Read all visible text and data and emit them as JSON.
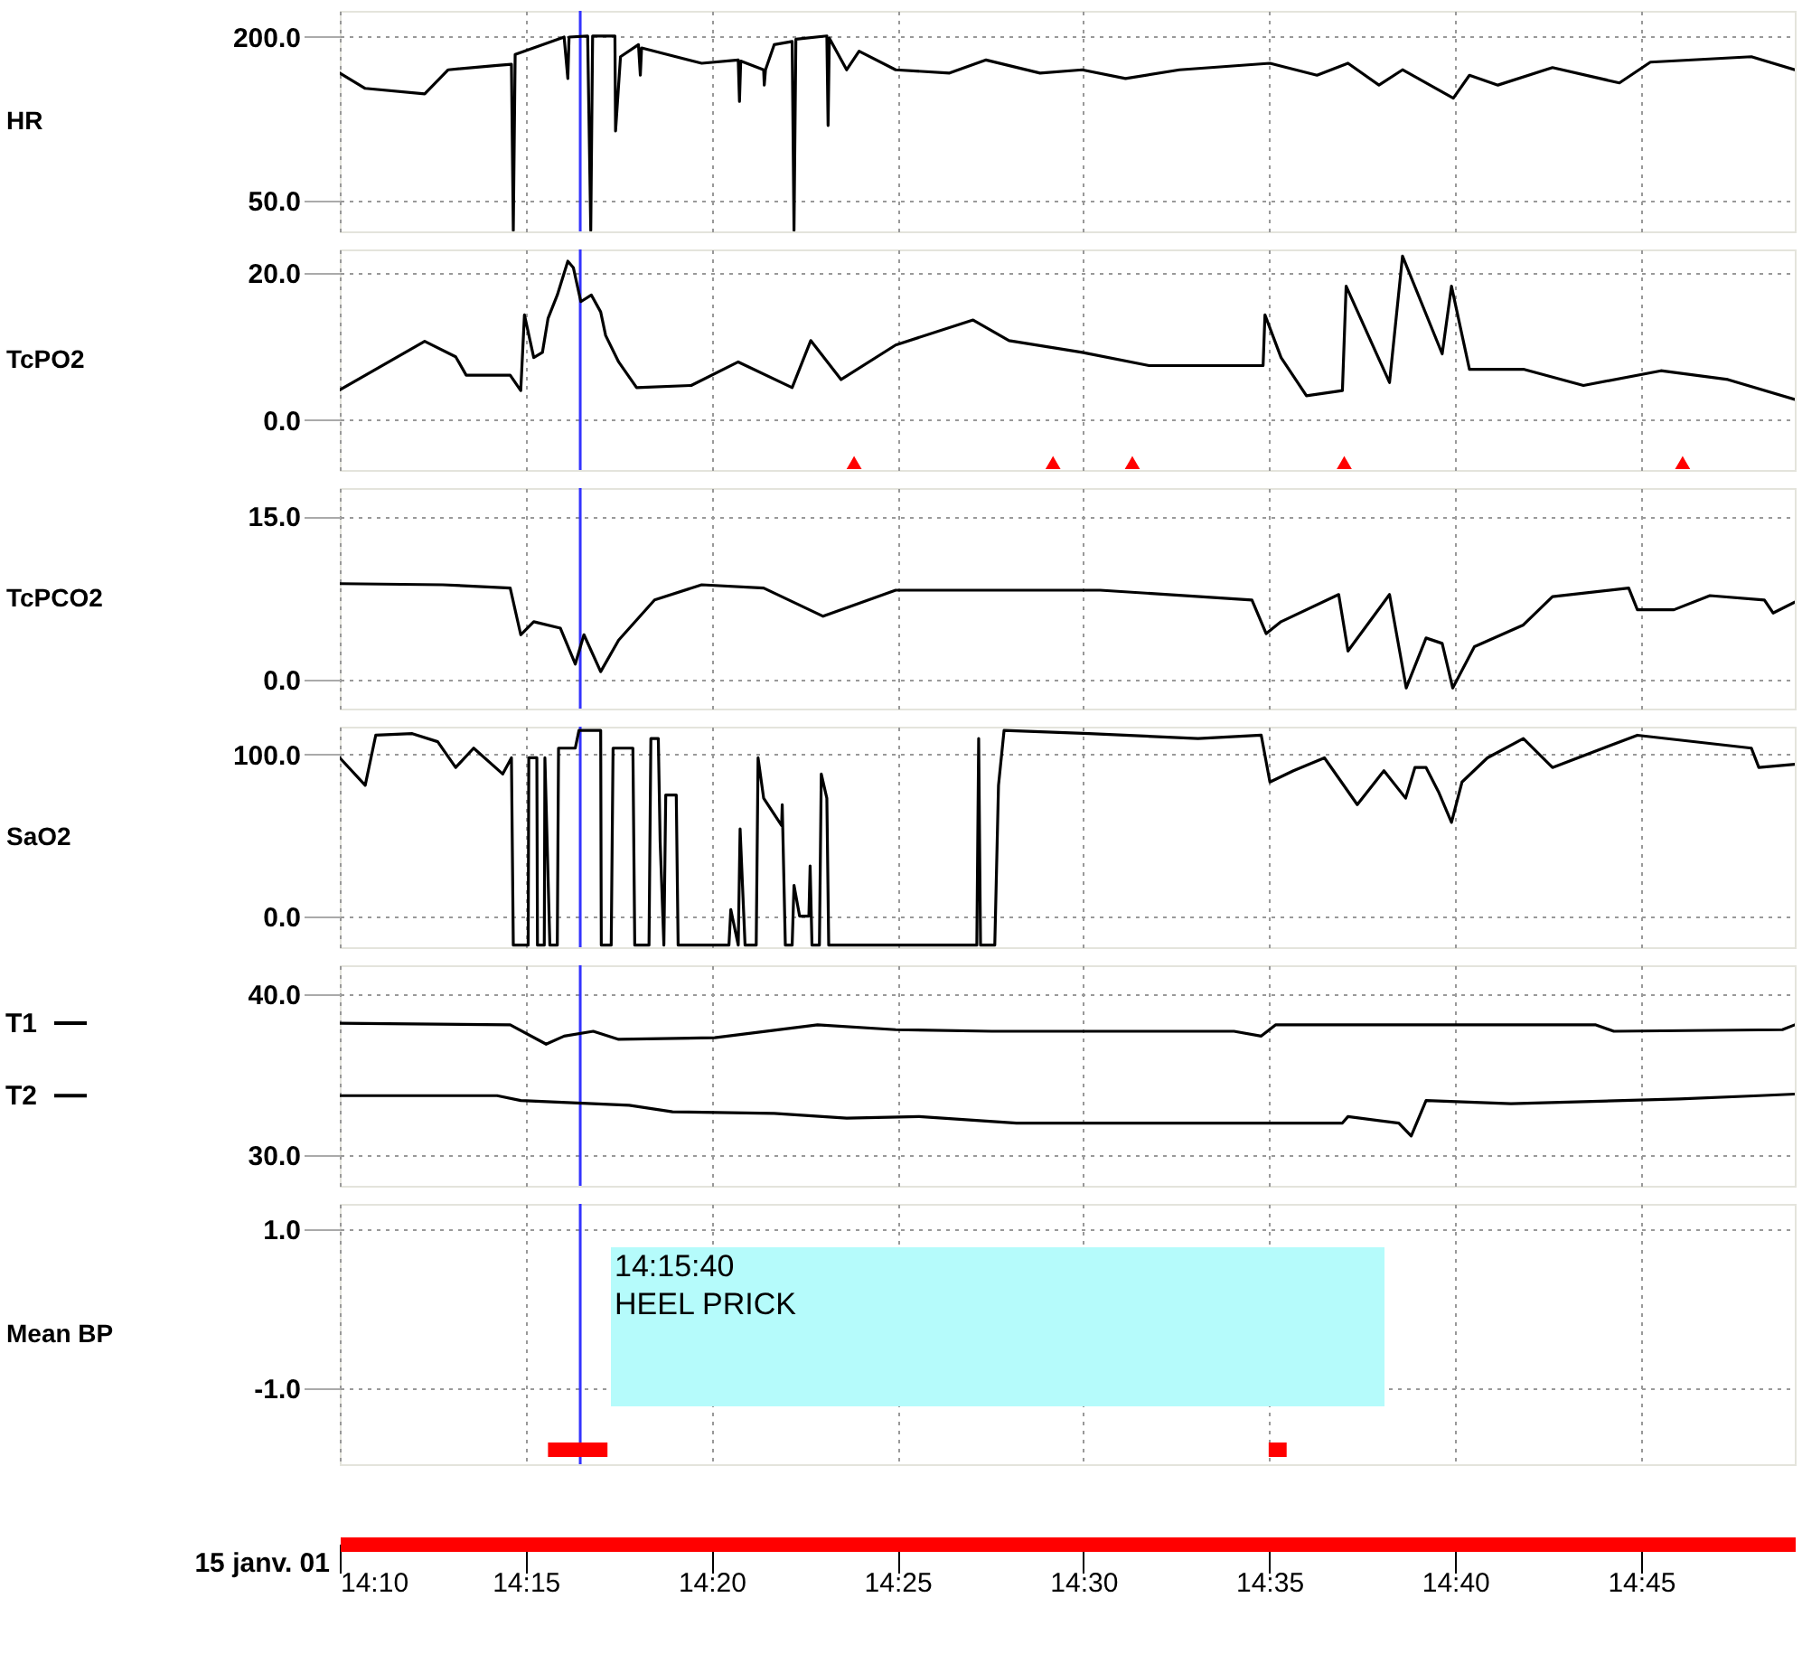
{
  "chart_data": [
    {
      "type": "line",
      "ylabel": "HR",
      "xlim": [
        "--01-15T14:10",
        "--01-15T14:49:08"
      ],
      "xticks": [
        {
          "value": "--01-15T14:10",
          "label": "14:10"
        },
        {
          "value": "--01-15T14:15",
          "label": "14:15"
        },
        {
          "value": "--01-15T14:20",
          "label": "14:20"
        },
        {
          "value": "--01-15T14:25",
          "label": "14:25"
        },
        {
          "value": "--01-15T14:30",
          "label": "14:30"
        },
        {
          "value": "--01-15T14:35",
          "label": "14:35"
        },
        {
          "value": "--01-15T14:40",
          "label": "14:40"
        },
        {
          "value": "--01-15T14:45",
          "label": "14:45"
        }
      ],
      "ylim": [
        22,
        224
      ],
      "yticks": [
        {
          "value": 200,
          "label": "200.0"
        },
        {
          "value": 50,
          "label": "50.0"
        }
      ],
      "grid": true,
      "tick_labels": "y",
      "ref_lines": [
        {
          "axis": "x",
          "value": "--01-15T14:16:28",
          "color": "#3333ff"
        }
      ],
      "series": [
        {
          "color": "#000000",
          "x": [
            "--01-15T14:10:00",
            "--01-15T14:10:41",
            "--01-15T14:12:17",
            "--01-15T14:12:55",
            "--01-15T14:14:14",
            "--01-15T14:14:37",
            "--01-15T14:14:40",
            "--01-15T14:14:43",
            "--01-15T14:16:02",
            "--01-15T14:16:08",
            "--01-15T14:16:10",
            "--01-15T14:16:40",
            "--01-15T14:16:45",
            "--01-15T14:16:48",
            "--01-15T14:17:24",
            "--01-15T14:17:25",
            "--01-15T14:17:33",
            "--01-15T14:18:02",
            "--01-15T14:18:05",
            "--01-15T14:18:07",
            "--01-15T14:19:44",
            "--01-15T14:20:43",
            "--01-15T14:20:45",
            "--01-15T14:20:47",
            "--01-15T14:21:24",
            "--01-15T14:21:25",
            "--01-15T14:21:27",
            "--01-15T14:21:41",
            "--01-15T14:22:10",
            "--01-15T14:22:13",
            "--01-15T14:22:16",
            "--01-15T14:23:06",
            "--01-15T14:23:08",
            "--01-15T14:23:10",
            "--01-15T14:23:38",
            "--01-15T14:23:58",
            "--01-15T14:24:57",
            "--01-15T14:26:24",
            "--01-15T14:27:23",
            "--01-15T14:28:50",
            "--01-15T14:29:58",
            "--01-15T14:31:08",
            "--01-15T14:32:35",
            "--01-15T14:35:01",
            "--01-15T14:36:17",
            "--01-15T14:37:07",
            "--01-15T14:37:57",
            "--01-15T14:38:35",
            "--01-15T14:39:57",
            "--01-15T14:40:23",
            "--01-15T14:41:09",
            "--01-15T14:42:37",
            "--01-15T14:44:25",
            "--01-15T14:45:15",
            "--01-15T14:47:58",
            "--01-15T14:49:08"
          ],
          "values": [
            167,
            153,
            148,
            170,
            174,
            175,
            23,
            184,
            200,
            162,
            200,
            201,
            23,
            201,
            201,
            114,
            182,
            193,
            165,
            190,
            176,
            179,
            141,
            178,
            170,
            156,
            170,
            193,
            196,
            23,
            198,
            201,
            119,
            199,
            170,
            187,
            170,
            167,
            179,
            167,
            170,
            162,
            170,
            176,
            165,
            176,
            156,
            170,
            144,
            165,
            156,
            172,
            158,
            177,
            182,
            170
          ]
        }
      ]
    },
    {
      "type": "line",
      "ylabel": "TcPO2",
      "xlim": [
        "--01-15T14:10",
        "--01-15T14:49:08"
      ],
      "xticks": [
        {
          "value": "--01-15T14:10",
          "label": "14:10"
        },
        {
          "value": "--01-15T14:15",
          "label": "14:15"
        },
        {
          "value": "--01-15T14:20",
          "label": "14:20"
        },
        {
          "value": "--01-15T14:25",
          "label": "14:25"
        },
        {
          "value": "--01-15T14:30",
          "label": "14:30"
        },
        {
          "value": "--01-15T14:35",
          "label": "14:35"
        },
        {
          "value": "--01-15T14:40",
          "label": "14:40"
        },
        {
          "value": "--01-15T14:45",
          "label": "14:45"
        }
      ],
      "ylim": [
        -6.8,
        23.2
      ],
      "yticks": [
        {
          "value": 20,
          "label": "20.0"
        },
        {
          "value": 0,
          "label": "0.0"
        }
      ],
      "grid": true,
      "tick_labels": "y",
      "ref_lines": [
        {
          "axis": "x",
          "value": "--01-15T14:16:28",
          "color": "#3333ff"
        }
      ],
      "series": [
        {
          "color": "#000000",
          "x": [
            "--01-15T14:10:00",
            "--01-15T14:12:17",
            "--01-15T14:13:07",
            "--01-15T14:13:24",
            "--01-15T14:14:35",
            "--01-15T14:14:52",
            "--01-15T14:14:58",
            "--01-15T14:15:13",
            "--01-15T14:15:27",
            "--01-15T14:15:36",
            "--01-15T14:15:51",
            "--01-15T14:16:08",
            "--01-15T14:16:17",
            "--01-15T14:16:29",
            "--01-15T14:16:46",
            "--01-15T14:17:01",
            "--01-15T14:17:09",
            "--01-15T14:17:30",
            "--01-15T14:17:59",
            "--01-15T14:19:27",
            "--01-15T14:20:43",
            "--01-15T14:22:10",
            "--01-15T14:22:40",
            "--01-15T14:23:29",
            "--01-15T14:24:57",
            "--01-15T14:27:02",
            "--01-15T14:28:00",
            "--01-15T14:29:58",
            "--01-15T14:31:46",
            "--01-15T14:34:50",
            "--01-15T14:34:53",
            "--01-15T14:35:19",
            "--01-15T14:36:00",
            "--01-15T14:36:58",
            "--01-15T14:37:04",
            "--01-15T14:38:14",
            "--01-15T14:38:35",
            "--01-15T14:39:39",
            "--01-15T14:39:54",
            "--01-15T14:40:23",
            "--01-15T14:41:50",
            "--01-15T14:43:27",
            "--01-15T14:45:32",
            "--01-15T14:47:20",
            "--01-15T14:49:08"
          ],
          "values": [
            4.1,
            10.7,
            8.6,
            6.1,
            6.1,
            4.0,
            14.3,
            8.5,
            9.2,
            13.8,
            17.0,
            21.6,
            20.7,
            16.1,
            17.0,
            14.7,
            11.5,
            7.9,
            4.4,
            4.7,
            7.9,
            4.4,
            10.8,
            5.5,
            10.2,
            13.6,
            10.8,
            9.2,
            7.4,
            7.4,
            14.3,
            8.5,
            3.3,
            4.0,
            18.2,
            5.1,
            22.3,
            9.0,
            18.2,
            6.9,
            6.9,
            4.7,
            6.7,
            5.5,
            2.8
          ]
        },
        {
          "type": "scatter",
          "marker": "triangle",
          "color": "#ff0000",
          "x": [
            "--01-15T14:23:50",
            "--01-15T14:29:11",
            "--01-15T14:31:19",
            "--01-15T14:37:01",
            "--01-15T14:46:07"
          ],
          "values": [
            -5.8,
            -5.8,
            -5.8,
            -5.8,
            -5.8
          ]
        }
      ]
    },
    {
      "type": "line",
      "ylabel": "TcPCO2",
      "xlim": [
        "--01-15T14:10",
        "--01-15T14:49:08"
      ],
      "xticks": [
        {
          "value": "--01-15T14:10",
          "label": "14:10"
        },
        {
          "value": "--01-15T14:15",
          "label": "14:15"
        },
        {
          "value": "--01-15T14:20",
          "label": "14:20"
        },
        {
          "value": "--01-15T14:25",
          "label": "14:25"
        },
        {
          "value": "--01-15T14:30",
          "label": "14:30"
        },
        {
          "value": "--01-15T14:35",
          "label": "14:35"
        },
        {
          "value": "--01-15T14:40",
          "label": "14:40"
        },
        {
          "value": "--01-15T14:45",
          "label": "14:45"
        }
      ],
      "ylim": [
        -2.7,
        17.6
      ],
      "yticks": [
        {
          "value": 15,
          "label": "15.0"
        },
        {
          "value": 0,
          "label": "0.0"
        }
      ],
      "grid": true,
      "tick_labels": "y",
      "ref_lines": [
        {
          "axis": "x",
          "value": "--01-15T14:16:28",
          "color": "#3333ff"
        }
      ],
      "series": [
        {
          "color": "#000000",
          "x": [
            "--01-15T14:10:00",
            "--01-15T14:12:46",
            "--01-15T14:14:35",
            "--01-15T14:14:52",
            "--01-15T14:15:13",
            "--01-15T14:15:56",
            "--01-15T14:16:20",
            "--01-15T14:16:34",
            "--01-15T14:17:01",
            "--01-15T14:17:30",
            "--01-15T14:18:28",
            "--01-15T14:19:44",
            "--01-15T14:21:24",
            "--01-15T14:23:00",
            "--01-15T14:24:57",
            "--01-15T14:30:27",
            "--01-15T14:34:32",
            "--01-15T14:34:55",
            "--01-15T14:35:19",
            "--01-15T14:36:52",
            "--01-15T14:37:07",
            "--01-15T14:38:14",
            "--01-15T14:38:41",
            "--01-15T14:39:13",
            "--01-15T14:39:39",
            "--01-15T14:39:56",
            "--01-15T14:40:31",
            "--01-15T14:41:50",
            "--01-15T14:42:37",
            "--01-15T14:44:40",
            "--01-15T14:44:54",
            "--01-15T14:45:53",
            "--01-15T14:46:51",
            "--01-15T14:48:19",
            "--01-15T14:48:33",
            "--01-15T14:49:08"
          ],
          "values": [
            8.8,
            8.7,
            8.4,
            4.1,
            5.3,
            4.7,
            1.4,
            4.1,
            0.7,
            3.6,
            7.3,
            8.7,
            8.4,
            5.8,
            8.2,
            8.2,
            7.3,
            4.2,
            5.3,
            7.8,
            2.6,
            7.8,
            -0.8,
            3.8,
            3.3,
            -0.8,
            3.0,
            5.0,
            7.6,
            8.4,
            6.4,
            6.4,
            7.7,
            7.3,
            6.1,
            7.1
          ]
        }
      ]
    },
    {
      "type": "line",
      "ylabel": "SaO2",
      "xlim": [
        "--01-15T14:10",
        "--01-15T14:49:08"
      ],
      "xticks": [
        {
          "value": "--01-15T14:10",
          "label": "14:10"
        },
        {
          "value": "--01-15T14:15",
          "label": "14:15"
        },
        {
          "value": "--01-15T14:20",
          "label": "14:20"
        },
        {
          "value": "--01-15T14:25",
          "label": "14:25"
        },
        {
          "value": "--01-15T14:30",
          "label": "14:30"
        },
        {
          "value": "--01-15T14:35",
          "label": "14:35"
        },
        {
          "value": "--01-15T14:40",
          "label": "14:40"
        },
        {
          "value": "--01-15T14:45",
          "label": "14:45"
        }
      ],
      "ylim": [
        -19.3,
        117.3
      ],
      "yticks": [
        {
          "value": 100,
          "label": "100.0"
        },
        {
          "value": 0,
          "label": "0.0"
        }
      ],
      "grid": true,
      "tick_labels": "y",
      "ref_lines": [
        {
          "axis": "x",
          "value": "--01-15T14:16:28",
          "color": "#3333ff"
        }
      ],
      "series": [
        {
          "color": "#000000",
          "x": [
            "--01-15T14:10:00",
            "--01-15T14:10:41",
            "--01-15T14:10:58",
            "--01-15T14:11:57",
            "--01-15T14:12:38",
            "--01-15T14:13:07",
            "--01-15T14:13:36",
            "--01-15T14:14:23",
            "--01-15T14:14:37",
            "--01-15T14:14:40",
            "--01-15T14:15:04",
            "--01-15T14:15:05",
            "--01-15T14:15:18",
            "--01-15T14:15:19",
            "--01-15T14:15:30",
            "--01-15T14:15:31",
            "--01-15T14:15:39",
            "--01-15T14:15:51",
            "--01-15T14:15:53",
            "--01-15T14:16:20",
            "--01-15T14:16:26",
            "--01-15T14:17:01",
            "--01-15T14:17:02",
            "--01-15T14:17:18",
            "--01-15T14:17:21",
            "--01-15T14:17:53",
            "--01-15T14:17:56",
            "--01-15T14:18:19",
            "--01-15T14:18:22",
            "--01-15T14:18:34",
            "--01-15T14:18:37",
            "--01-15T14:18:43",
            "--01-15T14:18:46",
            "--01-15T14:19:03",
            "--01-15T14:19:06",
            "--01-15T14:20:28",
            "--01-15T14:20:31",
            "--01-15T14:20:43",
            "--01-15T14:20:46",
            "--01-15T14:20:54",
            "--01-15T14:21:12",
            "--01-15T14:21:15",
            "--01-15T14:21:24",
            "--01-15T14:21:53",
            "--01-15T14:21:54",
            "--01-15T14:21:59",
            "--01-15T14:22:10",
            "--01-15T14:22:13",
            "--01-15T14:22:22",
            "--01-15T14:22:37",
            "--01-15T14:22:39",
            "--01-15T14:22:42",
            "--01-15T14:22:54",
            "--01-15T14:22:57",
            "--01-15T14:23:06",
            "--01-15T14:23:09",
            "--01-15T14:27:08",
            "--01-15T14:27:11",
            "--01-15T14:27:14",
            "--01-15T14:27:37",
            "--01-15T14:27:43",
            "--01-15T14:27:52",
            "--01-15T14:30:09",
            "--01-15T14:33:05",
            "--01-15T14:34:47",
            "--01-15T14:35:01",
            "--01-15T14:35:39",
            "--01-15T14:36:29",
            "--01-15T14:37:22",
            "--01-15T14:38:05",
            "--01-15T14:38:40",
            "--01-15T14:38:55",
            "--01-15T14:39:13",
            "--01-15T14:39:33",
            "--01-15T14:39:54",
            "--01-15T14:40:11",
            "--01-15T14:40:52",
            "--01-15T14:41:50",
            "--01-15T14:42:37",
            "--01-15T14:44:54",
            "--01-15T14:47:58",
            "--01-15T14:48:10",
            "--01-15T14:49:08"
          ],
          "values": [
            98,
            81,
            112,
            113,
            108,
            92,
            104,
            88,
            98,
            -18,
            -18,
            98,
            98,
            -18,
            -18,
            98,
            -18,
            -18,
            104,
            104,
            115,
            115,
            -18,
            -18,
            104,
            104,
            -18,
            -18,
            110,
            110,
            46,
            -18,
            75,
            75,
            -18,
            -18,
            4,
            -18,
            54,
            -18,
            -18,
            98,
            73,
            56,
            69,
            -18,
            -18,
            19,
            0,
            0,
            31,
            -18,
            -18,
            88,
            73,
            -18,
            -18,
            110,
            -18,
            -18,
            81,
            115,
            113,
            110,
            112,
            83,
            90,
            98,
            69,
            90,
            73,
            92,
            92,
            77,
            58,
            83,
            98,
            110,
            92,
            112,
            104,
            92,
            94
          ]
        }
      ]
    },
    {
      "type": "line",
      "xlim": [
        "--01-15T14:10",
        "--01-15T14:49:08"
      ],
      "xticks": [
        {
          "value": "--01-15T14:10",
          "label": "14:10"
        },
        {
          "value": "--01-15T14:15",
          "label": "14:15"
        },
        {
          "value": "--01-15T14:20",
          "label": "14:20"
        },
        {
          "value": "--01-15T14:25",
          "label": "14:25"
        },
        {
          "value": "--01-15T14:30",
          "label": "14:30"
        },
        {
          "value": "--01-15T14:35",
          "label": "14:35"
        },
        {
          "value": "--01-15T14:40",
          "label": "14:40"
        },
        {
          "value": "--01-15T14:45",
          "label": "14:45"
        }
      ],
      "ylim": [
        28.1,
        41.8
      ],
      "legend": "left",
      "yticks": [
        {
          "value": 40,
          "label": "40.0"
        },
        {
          "value": 30,
          "label": "30.0"
        }
      ],
      "grid": true,
      "tick_labels": "y",
      "ref_lines": [
        {
          "axis": "x",
          "value": "--01-15T14:16:28",
          "color": "#3333ff"
        }
      ],
      "series": [
        {
          "name": "T1",
          "color": "#000000",
          "x": [
            "--01-15T14:10:00",
            "--01-15T14:14:35",
            "--01-15T14:15:33",
            "--01-15T14:16:02",
            "--01-15T14:16:49",
            "--01-15T14:17:30",
            "--01-15T14:20:05",
            "--01-15T14:22:51",
            "--01-15T14:24:57",
            "--01-15T14:27:32",
            "--01-15T14:29:49",
            "--01-15T14:34:03",
            "--01-15T14:34:47",
            "--01-15T14:35:10",
            "--01-15T14:43:47",
            "--01-15T14:44:16",
            "--01-15T14:48:48",
            "--01-15T14:49:08"
          ],
          "values": [
            38.2,
            38.1,
            36.9,
            37.4,
            37.7,
            37.2,
            37.3,
            38.1,
            37.8,
            37.7,
            37.7,
            37.7,
            37.4,
            38.1,
            38.1,
            37.7,
            37.8,
            38.1
          ]
        },
        {
          "name": "T2",
          "color": "#000000",
          "x": [
            "--01-15T14:10:00",
            "--01-15T14:14:14",
            "--01-15T14:14:52",
            "--01-15T14:17:47",
            "--01-15T14:18:57",
            "--01-15T14:21:41",
            "--01-15T14:23:38",
            "--01-15T14:25:35",
            "--01-15T14:28:12",
            "--01-15T14:36:58",
            "--01-15T14:37:07",
            "--01-15T14:38:29",
            "--01-15T14:38:49",
            "--01-15T14:39:13",
            "--01-15T14:41:30",
            "--01-15T14:46:02",
            "--01-15T14:48:10",
            "--01-15T14:49:08"
          ],
          "values": [
            33.7,
            33.7,
            33.4,
            33.1,
            32.7,
            32.6,
            32.3,
            32.4,
            32.0,
            32.0,
            32.4,
            32.0,
            31.2,
            33.4,
            33.2,
            33.5,
            33.7,
            33.8
          ]
        }
      ]
    },
    {
      "type": "line",
      "ylabel": "Mean BP",
      "xlabel": "15 janv. 01",
      "xlim": [
        "--01-15T14:10",
        "--01-15T14:49:08"
      ],
      "xticks": [
        {
          "value": "--01-15T14:10",
          "label": "14:10"
        },
        {
          "value": "--01-15T14:15",
          "label": "14:15"
        },
        {
          "value": "--01-15T14:20",
          "label": "14:20"
        },
        {
          "value": "--01-15T14:25",
          "label": "14:25"
        },
        {
          "value": "--01-15T14:30",
          "label": "14:30"
        },
        {
          "value": "--01-15T14:35",
          "label": "14:35"
        },
        {
          "value": "--01-15T14:40",
          "label": "14:40"
        },
        {
          "value": "--01-15T14:45",
          "label": "14:45"
        }
      ],
      "ylim": [
        -1.95,
        1.32
      ],
      "yticks": [
        {
          "value": 1,
          "label": "1.0"
        },
        {
          "value": -1,
          "label": "-1.0"
        }
      ],
      "grid": true,
      "ref_lines": [
        {
          "axis": "x",
          "value": "--01-15T14:16:28",
          "color": "#3333ff"
        }
      ],
      "annotations": [
        "14:15:40\nHEEL PRICK"
      ],
      "bands": [
        {
          "axis": "x",
          "from": "--01-15T14:15:36",
          "to": "--01-15T14:17:12",
          "color": "#ff0000"
        },
        {
          "axis": "x",
          "from": "--01-15T14:34:59",
          "to": "--01-15T14:35:28",
          "color": "#ff0000"
        }
      ]
    }
  ]
}
